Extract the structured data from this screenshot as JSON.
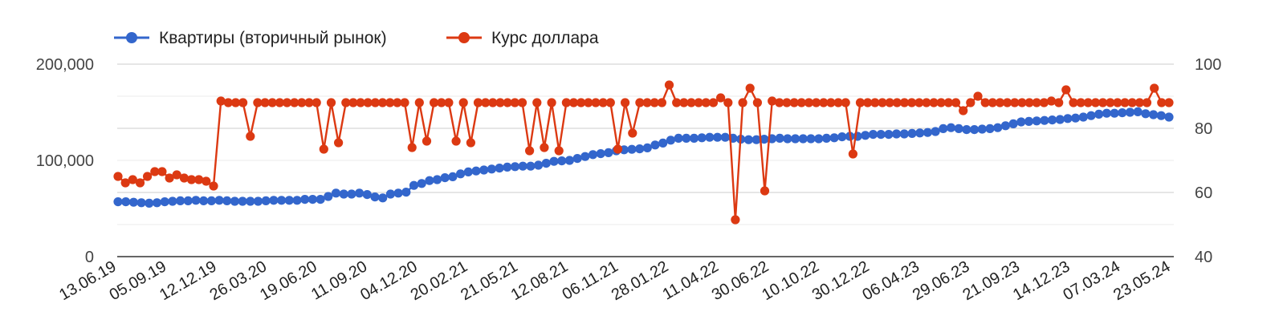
{
  "chart_data": {
    "type": "line",
    "title": "",
    "xlabel": "",
    "ylabel_left": "",
    "ylabel_right": "",
    "legend_position": "top-left",
    "grid": true,
    "y_left": {
      "min": 0,
      "max": 200000,
      "ticks": [
        "0",
        "100,000",
        "200,000"
      ]
    },
    "y_right": {
      "min": 40,
      "max": 100,
      "ticks": [
        "40",
        "60",
        "80",
        "100"
      ]
    },
    "x_tick_labels": [
      "13.06.19",
      "05.09.19",
      "12.12.19",
      "26.03.20",
      "19.06.20",
      "11.09.20",
      "04.12.20",
      "20.02.21",
      "21.05.21",
      "12.08.21",
      "06.11.21",
      "28.01.22",
      "11.04.22",
      "30.06.22",
      "10.10.22",
      "30.12.22",
      "06.04.23",
      "29.06.23",
      "21.09.23",
      "14.12.23",
      "07.03.24",
      "23.05.24"
    ],
    "series": [
      {
        "name": "Квартиры (вторичный рынок)",
        "axis": "left",
        "color": "#3366cc",
        "values": [
          57000,
          57000,
          56500,
          56000,
          55500,
          56000,
          57000,
          57500,
          58000,
          58000,
          58500,
          58000,
          58000,
          58500,
          58000,
          57500,
          57500,
          57500,
          57500,
          58000,
          58500,
          58500,
          58500,
          58500,
          59500,
          59500,
          59500,
          62500,
          66000,
          65000,
          65000,
          66000,
          64500,
          62000,
          61000,
          65000,
          66000,
          67000,
          74000,
          76000,
          79000,
          80000,
          82000,
          83000,
          86000,
          88000,
          89000,
          90000,
          91000,
          92000,
          93000,
          93500,
          94000,
          94000,
          95000,
          97000,
          99000,
          99500,
          100000,
          102000,
          104000,
          106000,
          107000,
          108000,
          110000,
          111000,
          111500,
          112000,
          113000,
          116000,
          118000,
          121000,
          123000,
          123000,
          123000,
          123500,
          124000,
          124000,
          124000,
          123000,
          122000,
          121500,
          121500,
          122000,
          122500,
          123000,
          122500,
          122500,
          122500,
          122500,
          122500,
          123000,
          123500,
          124500,
          125000,
          125000,
          126000,
          127000,
          127000,
          127000,
          127500,
          127500,
          128000,
          128500,
          129000,
          130000,
          133000,
          134000,
          133000,
          132000,
          132000,
          132500,
          133000,
          134000,
          136000,
          138000,
          140000,
          140500,
          141000,
          141500,
          142000,
          142500,
          143500,
          144000,
          145000,
          146500,
          148000,
          149000,
          149000,
          149500,
          150000,
          150500,
          148500,
          147500,
          146500,
          145000
        ]
      },
      {
        "name": "Курс доллара",
        "axis": "right",
        "color": "#dc3912",
        "values": [
          65,
          63,
          64,
          63,
          65,
          66.5,
          66.5,
          64.5,
          65.5,
          64.5,
          64,
          64,
          63.5,
          62,
          88.5,
          88,
          88,
          88,
          77.5,
          88,
          88,
          88,
          88,
          88,
          88,
          88,
          88,
          88,
          73.5,
          88,
          75.5,
          88,
          88,
          88,
          88,
          88,
          88,
          88,
          88,
          88,
          74,
          88,
          76,
          88,
          88,
          88,
          76,
          88,
          75.5,
          88,
          88,
          88,
          88,
          88,
          88,
          88,
          73,
          88,
          74,
          88,
          73,
          88,
          88,
          88,
          88,
          88,
          88,
          88,
          73.5,
          88,
          78.5,
          88,
          88,
          88,
          88,
          93.5,
          88,
          88,
          88,
          88,
          88,
          88,
          89.5,
          88,
          51.5,
          88,
          92.5,
          88,
          60.5,
          88.5,
          88,
          88,
          88,
          88,
          88,
          88,
          88,
          88,
          88,
          88,
          72,
          88,
          88,
          88,
          88,
          88,
          88,
          88,
          88,
          88,
          88,
          88,
          88,
          88,
          88,
          85.5,
          88,
          90,
          88,
          88,
          88,
          88,
          88,
          88,
          88,
          88,
          88,
          88.5,
          88,
          92,
          88,
          88,
          88,
          88,
          88,
          88,
          88,
          88,
          88,
          88,
          88,
          92.5,
          88,
          88
        ]
      }
    ]
  }
}
